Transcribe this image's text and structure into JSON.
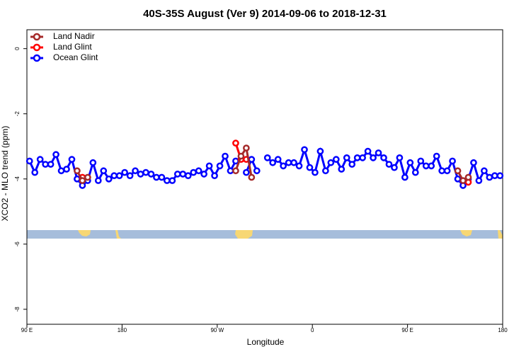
{
  "chart_data": {
    "type": "line",
    "title": "40S-35S August (Ver 9)   2014-09-06 to 2018-12-31",
    "xlabel": "Longitude",
    "ylabel": "XCO2 - MLO trend (ppm)",
    "legend": "top-left",
    "xlim": [
      90,
      540
    ],
    "ylim": [
      -8.46,
      0.58
    ],
    "xticks": [
      {
        "value": 90,
        "label": "90 E"
      },
      {
        "value": 180,
        "label": "180"
      },
      {
        "value": 270,
        "label": "90 W"
      },
      {
        "value": 360,
        "label": "0"
      },
      {
        "value": 450,
        "label": "90 E"
      },
      {
        "value": 540,
        "label": "180"
      }
    ],
    "yticks": [
      -8,
      -6,
      -4,
      -2,
      0
    ],
    "x": [
      92.5,
      97.5,
      102.5,
      107.5,
      112.5,
      117.5,
      122.5,
      127.5,
      132.5,
      137.5,
      142.5,
      147.5,
      152.5,
      157.5,
      162.5,
      167.5,
      172.5,
      177.5,
      182.5,
      187.5,
      192.5,
      197.5,
      202.5,
      207.5,
      212.5,
      217.5,
      222.5,
      227.5,
      232.5,
      237.5,
      242.5,
      247.5,
      252.5,
      257.5,
      262.5,
      267.5,
      272.5,
      277.5,
      282.5,
      287.5,
      292.5,
      297.5,
      302.5,
      307.5,
      312.5,
      317.5,
      322.5,
      327.5,
      332.5,
      337.5,
      342.5,
      347.5,
      352.5,
      357.5,
      362.5,
      367.5,
      372.5,
      377.5,
      382.5,
      387.5,
      392.5,
      397.5,
      402.5,
      407.5,
      412.5,
      417.5,
      422.5,
      427.5,
      432.5,
      437.5,
      442.5,
      447.5,
      452.5,
      457.5,
      462.5,
      467.5,
      472.5,
      477.5,
      482.5,
      487.5,
      492.5,
      497.5,
      502.5,
      507.5,
      512.5,
      517.5,
      522.5,
      527.5,
      532.5,
      537.5
    ],
    "series": [
      {
        "name": "Land Nadir",
        "color": "#a52a2a",
        "values": [
          null,
          null,
          null,
          null,
          null,
          null,
          null,
          null,
          null,
          -3.75,
          -4.05,
          -3.95,
          null,
          null,
          null,
          null,
          null,
          null,
          null,
          null,
          null,
          null,
          null,
          null,
          null,
          null,
          null,
          null,
          null,
          null,
          null,
          null,
          null,
          null,
          null,
          null,
          null,
          null,
          null,
          -3.75,
          -3.3,
          -3.05,
          -3.95,
          null,
          null,
          null,
          null,
          null,
          null,
          null,
          null,
          null,
          null,
          null,
          null,
          null,
          null,
          null,
          null,
          null,
          null,
          null,
          null,
          null,
          null,
          null,
          null,
          null,
          null,
          null,
          null,
          null,
          null,
          null,
          null,
          null,
          null,
          null,
          null,
          null,
          null,
          -3.75,
          -4.05,
          -3.95,
          null,
          null,
          null,
          null,
          null,
          null
        ]
      },
      {
        "name": "Land Glint",
        "color": "#ff0000",
        "values": [
          null,
          null,
          null,
          null,
          null,
          null,
          null,
          null,
          null,
          null,
          -3.95,
          null,
          null,
          null,
          null,
          null,
          null,
          null,
          null,
          null,
          null,
          null,
          null,
          null,
          null,
          null,
          null,
          null,
          null,
          null,
          null,
          null,
          null,
          null,
          null,
          null,
          null,
          null,
          null,
          -2.9,
          -3.4,
          -3.4,
          null,
          null,
          null,
          null,
          null,
          null,
          null,
          null,
          null,
          null,
          null,
          null,
          null,
          null,
          null,
          null,
          null,
          null,
          null,
          null,
          null,
          null,
          null,
          null,
          null,
          null,
          null,
          null,
          null,
          null,
          null,
          null,
          null,
          null,
          null,
          null,
          null,
          null,
          null,
          null,
          null,
          -4.1,
          null,
          null,
          null,
          null,
          null,
          null
        ]
      },
      {
        "name": "Ocean Glint",
        "color": "#0000ff",
        "values": [
          -3.45,
          -3.8,
          -3.4,
          -3.55,
          -3.55,
          -3.25,
          -3.75,
          -3.7,
          -3.4,
          -4.0,
          -4.2,
          -4.05,
          -3.5,
          -4.05,
          -3.75,
          -4.0,
          -3.9,
          -3.9,
          -3.8,
          -3.9,
          -3.75,
          -3.85,
          -3.8,
          -3.85,
          -3.95,
          -3.95,
          -4.05,
          -4.05,
          -3.85,
          -3.85,
          -3.9,
          -3.8,
          -3.75,
          -3.85,
          -3.6,
          -3.9,
          -3.6,
          -3.3,
          -3.75,
          -3.45,
          null,
          -3.8,
          -3.4,
          -3.75,
          null,
          -3.35,
          -3.5,
          -3.4,
          -3.6,
          -3.5,
          -3.5,
          -3.6,
          -3.1,
          -3.65,
          -3.8,
          -3.15,
          -3.75,
          -3.5,
          -3.4,
          -3.7,
          -3.35,
          -3.55,
          -3.35,
          -3.35,
          -3.15,
          -3.35,
          -3.2,
          -3.35,
          -3.55,
          -3.65,
          -3.35,
          -3.95,
          -3.5,
          -3.8,
          -3.45,
          -3.6,
          -3.6,
          -3.3,
          -3.75,
          -3.75,
          -3.45,
          -4.0,
          -4.2,
          -4.0,
          -3.5,
          -4.05,
          -3.75,
          -3.95,
          -3.9,
          -3.9
        ]
      }
    ]
  }
}
